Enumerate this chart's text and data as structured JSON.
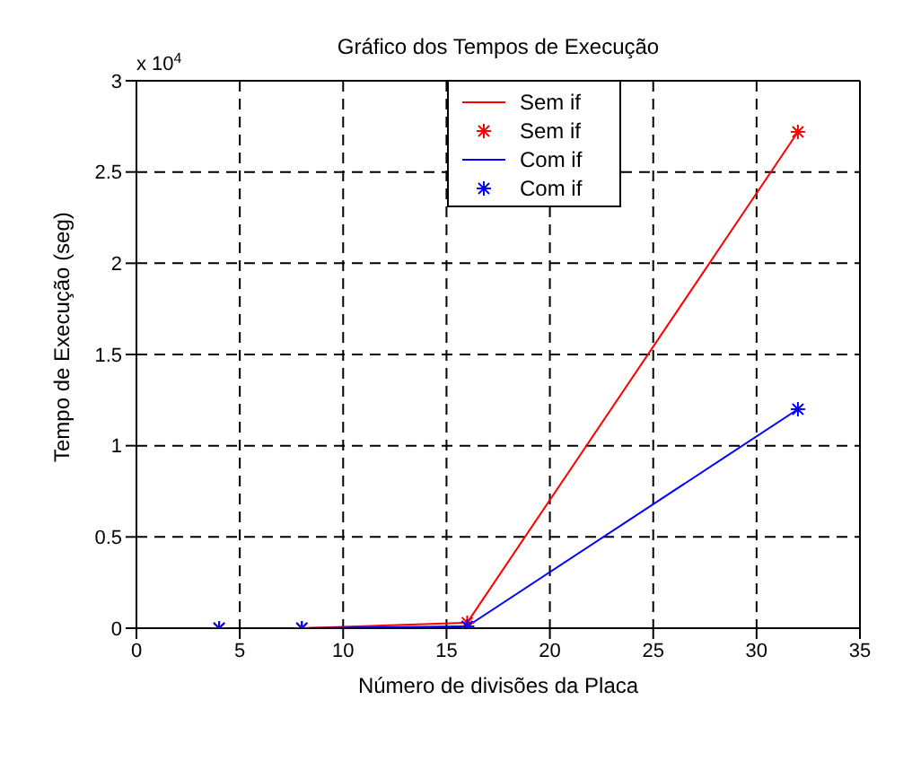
{
  "chart_data": {
    "type": "line",
    "title": "Gráfico dos Tempos de Execução",
    "xlabel": "Número de divisões da Placa",
    "ylabel": "Tempo de Execução (seg)",
    "annotations": [
      "x 10$^{4}$"
    ],
    "x": [
      4,
      8,
      16,
      32
    ],
    "series": [
      {
        "name": "Sem if",
        "color": "#ff0000",
        "values": [
          0,
          0,
          0.03,
          2.72
        ]
      },
      {
        "name": "Com if",
        "color": "#0000ff",
        "values": [
          0,
          0,
          0.01,
          1.2
        ]
      }
    ],
    "xlim": [
      0,
      35
    ],
    "xticks": [
      0,
      5,
      10,
      15,
      20,
      25,
      30,
      35
    ],
    "ylim": [
      0,
      3
    ],
    "yticks": [
      0,
      0.5,
      1,
      1.5,
      2,
      2.5,
      3
    ],
    "grid": true,
    "legend": "top",
    "marker": "cross",
    "line_style": "solid"
  }
}
